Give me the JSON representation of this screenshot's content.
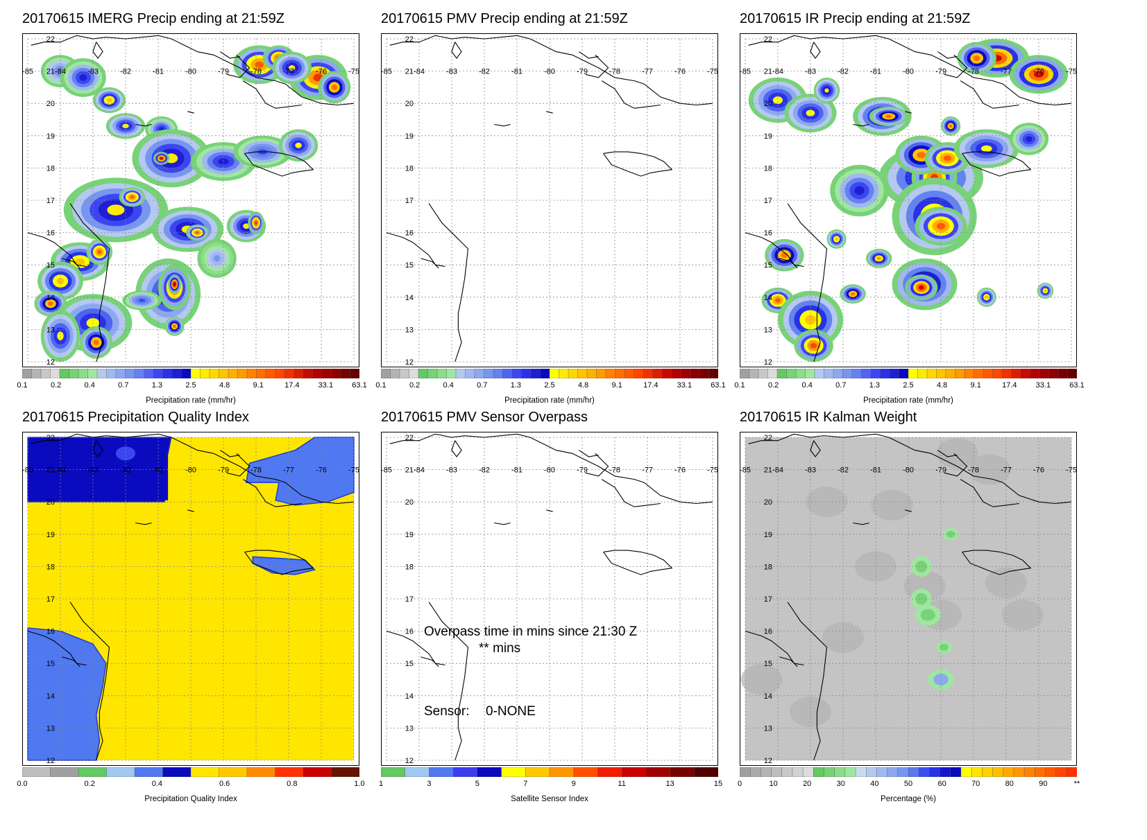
{
  "map_extent": {
    "lon_min": -85,
    "lon_max": -75,
    "lat_min": 12,
    "lat_max": 22
  },
  "lon_ticks": [
    "-85",
    "-84",
    "-83",
    "-82",
    "-81",
    "-80",
    "-79",
    "-78",
    "-77",
    "-76",
    "-75"
  ],
  "lat_ticks": [
    "12",
    "13",
    "14",
    "15",
    "16",
    "17",
    "18",
    "19",
    "20",
    "21",
    "22"
  ],
  "panels": [
    {
      "title": "20170615 IMERG Precip ending at 21:59Z",
      "field": "precip-imerg",
      "colorbar": {
        "title": "Precipitation rate (mm/hr)",
        "colors": [
          "#a0a0a0",
          "#b4b4b4",
          "#c8c8c8",
          "#dcdcdc",
          "#64c864",
          "#78d278",
          "#8cdc8c",
          "#a0e6a0",
          "#b4c8f0",
          "#a0b8f0",
          "#8ca8f0",
          "#7896f0",
          "#6482f0",
          "#5064f0",
          "#3c46f0",
          "#2832e6",
          "#1e1ed2",
          "#0a0abe",
          "#ffff00",
          "#ffeb00",
          "#ffd700",
          "#ffc300",
          "#ffaf00",
          "#ff9b00",
          "#ff8200",
          "#ff6e00",
          "#ff5a00",
          "#ff4600",
          "#f03200",
          "#dc1e00",
          "#c80a00",
          "#b40000",
          "#a00000",
          "#8c0000",
          "#780000",
          "#640000"
        ],
        "labels": [
          "0.1",
          "0.2",
          "0.4",
          "0.7",
          "1.3",
          "2.5",
          "4.8",
          "9.1",
          "17.4",
          "33.1",
          "63.1"
        ]
      }
    },
    {
      "title": "20170615 PMV Precip ending at 21:59Z",
      "field": "empty",
      "colorbar": {
        "title": "Precipitation rate (mm/hr)",
        "colors": [
          "#a0a0a0",
          "#b4b4b4",
          "#c8c8c8",
          "#dcdcdc",
          "#64c864",
          "#78d278",
          "#8cdc8c",
          "#a0e6a0",
          "#b4c8f0",
          "#a0b8f0",
          "#8ca8f0",
          "#7896f0",
          "#6482f0",
          "#5064f0",
          "#3c46f0",
          "#2832e6",
          "#1e1ed2",
          "#0a0abe",
          "#ffff00",
          "#ffeb00",
          "#ffd700",
          "#ffc300",
          "#ffaf00",
          "#ff9b00",
          "#ff8200",
          "#ff6e00",
          "#ff5a00",
          "#ff4600",
          "#f03200",
          "#dc1e00",
          "#c80a00",
          "#b40000",
          "#a00000",
          "#8c0000",
          "#780000",
          "#640000"
        ],
        "labels": [
          "0.1",
          "0.2",
          "0.4",
          "0.7",
          "1.3",
          "2.5",
          "4.8",
          "9.1",
          "17.4",
          "33.1",
          "63.1"
        ]
      }
    },
    {
      "title": "20170615 IR Precip ending at 21:59Z",
      "field": "precip-ir",
      "colorbar": {
        "title": "Precipitation rate (mm/hr)",
        "colors": [
          "#a0a0a0",
          "#b4b4b4",
          "#c8c8c8",
          "#dcdcdc",
          "#64c864",
          "#78d278",
          "#8cdc8c",
          "#a0e6a0",
          "#b4c8f0",
          "#a0b8f0",
          "#8ca8f0",
          "#7896f0",
          "#6482f0",
          "#5064f0",
          "#3c46f0",
          "#2832e6",
          "#1e1ed2",
          "#0a0abe",
          "#ffff00",
          "#ffeb00",
          "#ffd700",
          "#ffc300",
          "#ffaf00",
          "#ff9b00",
          "#ff8200",
          "#ff6e00",
          "#ff5a00",
          "#ff4600",
          "#f03200",
          "#dc1e00",
          "#c80a00",
          "#b40000",
          "#a00000",
          "#8c0000",
          "#780000",
          "#640000"
        ],
        "labels": [
          "0.1",
          "0.2",
          "0.4",
          "0.7",
          "1.3",
          "2.5",
          "4.8",
          "9.1",
          "17.4",
          "33.1",
          "63.1"
        ]
      }
    },
    {
      "title": "20170615 Precipitation Quality Index",
      "field": "quality",
      "colorbar": {
        "title": "Precipitation Quality Index",
        "colors": [
          "#bebebe",
          "#a0a0a0",
          "#64c864",
          "#a0c8f0",
          "#5078f0",
          "#0a0abe",
          "#ffe600",
          "#ffc800",
          "#ff8c00",
          "#ff3200",
          "#c80000",
          "#641400"
        ],
        "labels": [
          "0.0",
          "0.2",
          "0.4",
          "0.6",
          "0.8",
          "1.0"
        ]
      }
    },
    {
      "title": "20170615 PMV Sensor Overpass",
      "field": "empty",
      "overlay": {
        "line1": "Overpass time in mins since 21:30 Z",
        "line2": "** mins",
        "sensor_label": "Sensor:",
        "sensor_value": "0-NONE"
      },
      "colorbar": {
        "title": "Satellite Sensor Index",
        "colors": [
          "#64c864",
          "#a0c8f0",
          "#5078f0",
          "#3c3cf0",
          "#0a0abe",
          "#ffff00",
          "#ffc800",
          "#ff9600",
          "#ff5000",
          "#f01e00",
          "#c80000",
          "#a00000",
          "#780000",
          "#500000"
        ],
        "labels": [
          "1",
          "3",
          "5",
          "7",
          "9",
          "11",
          "13",
          "15"
        ]
      }
    },
    {
      "title": "20170615 IR Kalman Weight",
      "field": "kalman",
      "colorbar": {
        "title": "Percentage (%)",
        "colors": [
          "#a0a0a0",
          "#aaaaaa",
          "#b4b4b4",
          "#bebebe",
          "#c8c8c8",
          "#d2d2d2",
          "#dcdcdc",
          "#64c864",
          "#78d278",
          "#8cdc8c",
          "#a0e6a0",
          "#c8dcf0",
          "#b4c8f0",
          "#a0b8f0",
          "#8ca8f0",
          "#7896f0",
          "#5a78f0",
          "#3c50f0",
          "#2832e6",
          "#1414d2",
          "#0a0abe",
          "#ffff00",
          "#ffe600",
          "#ffd200",
          "#ffbe00",
          "#ffaa00",
          "#ff9600",
          "#ff8200",
          "#ff6e00",
          "#ff5a00",
          "#ff4600",
          "#ff3200"
        ],
        "labels": [
          "0",
          "10",
          "20",
          "30",
          "40",
          "50",
          "60",
          "70",
          "80",
          "90",
          "**"
        ]
      }
    }
  ]
}
